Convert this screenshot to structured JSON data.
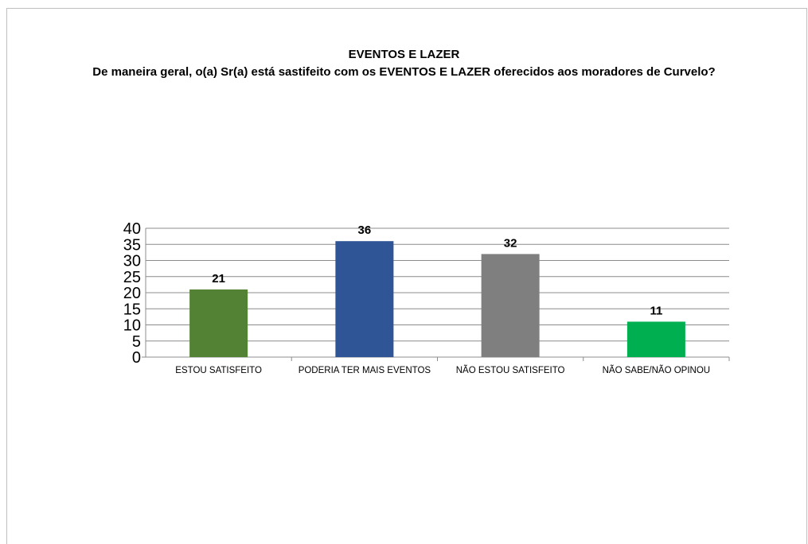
{
  "chart_data": {
    "type": "bar",
    "title": "EVENTOS E LAZER",
    "subtitle": "De maneira geral, o(a) Sr(a) está sastifeito com os EVENTOS E LAZER oferecidos aos moradores de Curvelo?",
    "categories": [
      "ESTOU SATISFEITO",
      "PODERIA TER MAIS EVENTOS",
      "NÃO ESTOU SATISFEITO",
      "NÃO SABE/NÃO OPINOU"
    ],
    "values": [
      21,
      36,
      32,
      11
    ],
    "colors": [
      "#548235",
      "#2f5597",
      "#7f7f7f",
      "#00b050"
    ],
    "ylim": [
      0,
      40
    ],
    "yticks": [
      0,
      5,
      10,
      15,
      20,
      25,
      30,
      35,
      40
    ],
    "grid": true,
    "legend": "none"
  }
}
